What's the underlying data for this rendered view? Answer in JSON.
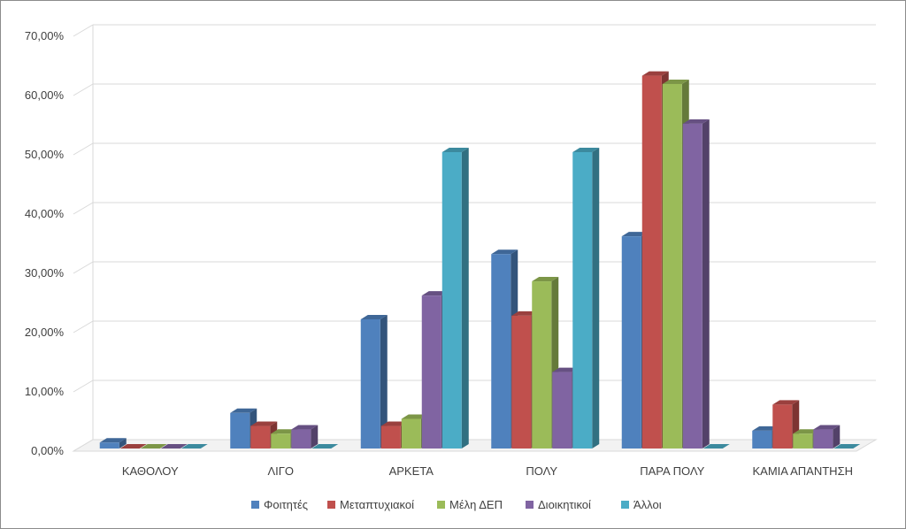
{
  "chart_data": {
    "type": "bar",
    "style": "3d-clustered-column",
    "categories": [
      "ΚΑΘΟΛΟΥ",
      "ΛΙΓΟ",
      "ΑΡΚΕΤΑ",
      "ΠΟΛΥ",
      "ΠΑΡΑ ΠΟΛΥ",
      "ΚΑΜΙΑ ΑΠΑΝΤΗΣΗ"
    ],
    "series": [
      {
        "name": "Φοιτητές",
        "color": "#4f81bd",
        "values": [
          1.0,
          6.0,
          21.8,
          32.8,
          35.8,
          3.0
        ]
      },
      {
        "name": "Μεταπτυχιακοί",
        "color": "#c0504d",
        "values": [
          0.0,
          3.8,
          3.8,
          22.4,
          62.9,
          7.4
        ]
      },
      {
        "name": "Μέλη ΔΕΠ",
        "color": "#9bbb59",
        "values": [
          0.0,
          2.5,
          5.0,
          28.2,
          61.5,
          2.5
        ]
      },
      {
        "name": "Διοικητικοί",
        "color": "#8064a2",
        "values": [
          0.0,
          3.2,
          25.8,
          12.9,
          54.8,
          3.2
        ]
      },
      {
        "name": "Άλλοι",
        "color": "#4bacc6",
        "values": [
          0.0,
          0.0,
          50.0,
          50.0,
          0.0,
          0.0
        ]
      }
    ],
    "y_ticks": [
      "0,00%",
      "10,00%",
      "20,00%",
      "30,00%",
      "40,00%",
      "50,00%",
      "60,00%",
      "70,00%"
    ],
    "ylim": [
      0,
      70
    ],
    "grid": true,
    "legend_position": "bottom",
    "title": "",
    "xlabel": "",
    "ylabel": ""
  }
}
